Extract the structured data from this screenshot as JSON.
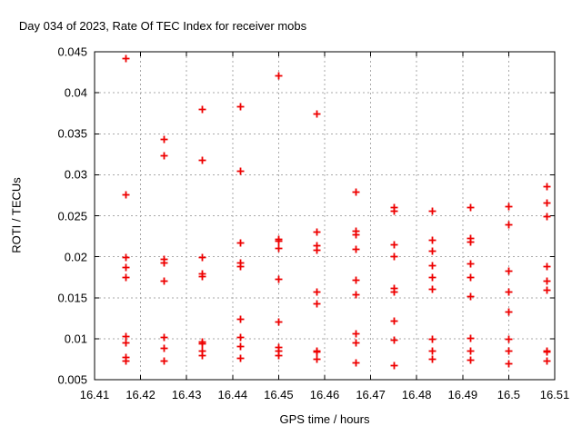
{
  "chart_data": {
    "type": "scatter",
    "title": "Day 034 of 2023, Rate Of TEC Index for receiver mobs",
    "xlabel": "GPS time / hours",
    "ylabel": "ROTI / TECUs",
    "xlim": [
      16.41,
      16.51
    ],
    "ylim": [
      0.005,
      0.045
    ],
    "grid": "dashed-gray",
    "legend": "none",
    "marker": "plus",
    "marker_color": "#ee0000",
    "grid_color": "#aaaaaa",
    "border_color": "#000000",
    "x_ticks": [
      {
        "v": 16.41,
        "label": "16.41"
      },
      {
        "v": 16.42,
        "label": "16.42"
      },
      {
        "v": 16.43,
        "label": "16.43"
      },
      {
        "v": 16.44,
        "label": "16.44"
      },
      {
        "v": 16.45,
        "label": "16.45"
      },
      {
        "v": 16.46,
        "label": "16.46"
      },
      {
        "v": 16.47,
        "label": "16.47"
      },
      {
        "v": 16.48,
        "label": "16.48"
      },
      {
        "v": 16.49,
        "label": "16.49"
      },
      {
        "v": 16.5,
        "label": "16.5"
      },
      {
        "v": 16.51,
        "label": "16.51"
      }
    ],
    "y_ticks": [
      {
        "v": 0.005,
        "label": "0.005"
      },
      {
        "v": 0.01,
        "label": "0.01"
      },
      {
        "v": 0.015,
        "label": "0.015"
      },
      {
        "v": 0.02,
        "label": "0.02"
      },
      {
        "v": 0.025,
        "label": "0.025"
      },
      {
        "v": 0.03,
        "label": "0.03"
      },
      {
        "v": 0.035,
        "label": "0.035"
      },
      {
        "v": 0.04,
        "label": "0.04"
      },
      {
        "v": 0.045,
        "label": "0.045"
      }
    ],
    "series": [
      {
        "name": "ROTI",
        "points": [
          [
            16.4167,
            0.0442
          ],
          [
            16.4167,
            0.0276
          ],
          [
            16.4167,
            0.02
          ],
          [
            16.4167,
            0.0187
          ],
          [
            16.4167,
            0.0175
          ],
          [
            16.4167,
            0.0103
          ],
          [
            16.4167,
            0.0095
          ],
          [
            16.4167,
            0.0078
          ],
          [
            16.4167,
            0.0073
          ],
          [
            16.425,
            0.0344
          ],
          [
            16.425,
            0.0324
          ],
          [
            16.425,
            0.0197
          ],
          [
            16.425,
            0.0193
          ],
          [
            16.425,
            0.0171
          ],
          [
            16.425,
            0.0102
          ],
          [
            16.425,
            0.0089
          ],
          [
            16.425,
            0.0073
          ],
          [
            16.4333,
            0.038
          ],
          [
            16.4333,
            0.0318
          ],
          [
            16.4333,
            0.02
          ],
          [
            16.4333,
            0.018
          ],
          [
            16.4333,
            0.0176
          ],
          [
            16.4333,
            0.0096
          ],
          [
            16.4333,
            0.0094
          ],
          [
            16.4333,
            0.0086
          ],
          [
            16.4333,
            0.008
          ],
          [
            16.4417,
            0.0384
          ],
          [
            16.4417,
            0.0305
          ],
          [
            16.4417,
            0.0217
          ],
          [
            16.4417,
            0.0193
          ],
          [
            16.4417,
            0.0189
          ],
          [
            16.4417,
            0.0124
          ],
          [
            16.4417,
            0.0102
          ],
          [
            16.4417,
            0.0091
          ],
          [
            16.4417,
            0.0077
          ],
          [
            16.45,
            0.0421
          ],
          [
            16.45,
            0.0222
          ],
          [
            16.45,
            0.0219
          ],
          [
            16.45,
            0.0211
          ],
          [
            16.45,
            0.0173
          ],
          [
            16.45,
            0.0121
          ],
          [
            16.45,
            0.009
          ],
          [
            16.45,
            0.0085
          ],
          [
            16.45,
            0.008
          ],
          [
            16.4583,
            0.0375
          ],
          [
            16.4583,
            0.0231
          ],
          [
            16.4583,
            0.0214
          ],
          [
            16.4583,
            0.0209
          ],
          [
            16.4583,
            0.0158
          ],
          [
            16.4583,
            0.0143
          ],
          [
            16.4583,
            0.0086
          ],
          [
            16.4583,
            0.0084
          ],
          [
            16.4583,
            0.0075
          ],
          [
            16.4667,
            0.0279
          ],
          [
            16.4667,
            0.0232
          ],
          [
            16.4667,
            0.0227
          ],
          [
            16.4667,
            0.021
          ],
          [
            16.4667,
            0.0172
          ],
          [
            16.4667,
            0.0154
          ],
          [
            16.4667,
            0.0107
          ],
          [
            16.4667,
            0.0095
          ],
          [
            16.4667,
            0.0071
          ],
          [
            16.475,
            0.0261
          ],
          [
            16.475,
            0.0256
          ],
          [
            16.475,
            0.0215
          ],
          [
            16.475,
            0.0201
          ],
          [
            16.475,
            0.0162
          ],
          [
            16.475,
            0.0157
          ],
          [
            16.475,
            0.0122
          ],
          [
            16.475,
            0.0099
          ],
          [
            16.475,
            0.0068
          ],
          [
            16.4833,
            0.0256
          ],
          [
            16.4833,
            0.0221
          ],
          [
            16.4833,
            0.0207
          ],
          [
            16.4833,
            0.019
          ],
          [
            16.4833,
            0.0175
          ],
          [
            16.4833,
            0.0161
          ],
          [
            16.4833,
            0.01
          ],
          [
            16.4833,
            0.0086
          ],
          [
            16.4833,
            0.0076
          ],
          [
            16.4917,
            0.026
          ],
          [
            16.4917,
            0.0223
          ],
          [
            16.4917,
            0.0218
          ],
          [
            16.4917,
            0.0192
          ],
          [
            16.4917,
            0.0175
          ],
          [
            16.4917,
            0.0152
          ],
          [
            16.4917,
            0.0101
          ],
          [
            16.4917,
            0.0085
          ],
          [
            16.4917,
            0.0074
          ],
          [
            16.5,
            0.0262
          ],
          [
            16.5,
            0.024
          ],
          [
            16.5,
            0.0183
          ],
          [
            16.5,
            0.0158
          ],
          [
            16.5,
            0.0133
          ],
          [
            16.5,
            0.01
          ],
          [
            16.5,
            0.0085
          ],
          [
            16.5,
            0.007
          ],
          [
            16.5083,
            0.0286
          ],
          [
            16.5083,
            0.0266
          ],
          [
            16.5083,
            0.0249
          ],
          [
            16.5083,
            0.0189
          ],
          [
            16.5083,
            0.0171
          ],
          [
            16.5083,
            0.016
          ],
          [
            16.5083,
            0.0086
          ],
          [
            16.5083,
            0.0084
          ],
          [
            16.5083,
            0.0073
          ]
        ]
      }
    ]
  }
}
